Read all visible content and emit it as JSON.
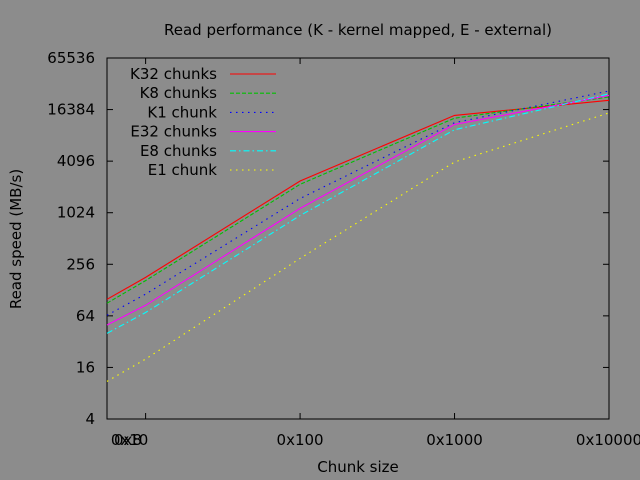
{
  "chart_data": {
    "type": "line",
    "title": "Read performance (K - kernel mapped, E - external)",
    "xlabel": "Chunk size",
    "ylabel": "Read speed (MB/s)",
    "x_scale": "log2",
    "y_scale": "log2",
    "xlim": [
      8,
      65536
    ],
    "ylim": [
      4,
      65536
    ],
    "x_ticks": [
      {
        "value": 8,
        "label": "0x8"
      },
      {
        "value": 16,
        "label": "0x10"
      },
      {
        "value": 256,
        "label": "0x100"
      },
      {
        "value": 4096,
        "label": "0x1000"
      },
      {
        "value": 65536,
        "label": "0x10000"
      }
    ],
    "y_ticks": [
      {
        "value": 4,
        "label": "4"
      },
      {
        "value": 16,
        "label": "16"
      },
      {
        "value": 64,
        "label": "64"
      },
      {
        "value": 256,
        "label": "256"
      },
      {
        "value": 1024,
        "label": "1024"
      },
      {
        "value": 4096,
        "label": "4096"
      },
      {
        "value": 16384,
        "label": "16384"
      },
      {
        "value": 65536,
        "label": "65536"
      }
    ],
    "legend_position": "top-left",
    "grid": false,
    "series": [
      {
        "name": "K32 chunks",
        "color": "#ff0000",
        "dash": "solid",
        "x": [
          8,
          16,
          256,
          4096,
          65536
        ],
        "y": [
          100,
          180,
          2400,
          14000,
          21000
        ]
      },
      {
        "name": "K8 chunks",
        "color": "#00c000",
        "dash": "dash",
        "x": [
          8,
          16,
          256,
          4096,
          65536
        ],
        "y": [
          90,
          165,
          2200,
          13000,
          23000
        ]
      },
      {
        "name": "K1 chunk",
        "color": "#0000ff",
        "dash": "dot",
        "x": [
          8,
          16,
          256,
          4096,
          65536
        ],
        "y": [
          65,
          115,
          1500,
          11500,
          27000
        ]
      },
      {
        "name": "E32 chunks",
        "color": "#ff00ff",
        "dash": "solid",
        "x": [
          8,
          16,
          256,
          4096,
          65536
        ],
        "y": [
          50,
          85,
          1150,
          11000,
          24000
        ]
      },
      {
        "name": "E8 chunks",
        "color": "#00ffff",
        "dash": "dashdot",
        "x": [
          8,
          16,
          256,
          4096,
          65536
        ],
        "y": [
          40,
          70,
          950,
          9500,
          25000
        ]
      },
      {
        "name": "E1 chunk",
        "color": "#ffff00",
        "dash": "dot",
        "x": [
          8,
          16,
          256,
          4096,
          65536
        ],
        "y": [
          11,
          20,
          300,
          4000,
          15000
        ]
      }
    ]
  }
}
